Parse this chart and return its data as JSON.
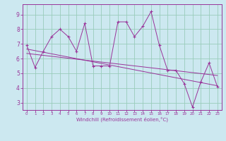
{
  "x": [
    0,
    1,
    2,
    3,
    4,
    5,
    6,
    7,
    8,
    9,
    10,
    11,
    12,
    13,
    14,
    15,
    16,
    17,
    18,
    19,
    20,
    21,
    22,
    23
  ],
  "y": [
    6.9,
    5.4,
    6.5,
    7.5,
    8.0,
    7.5,
    6.5,
    8.4,
    5.5,
    5.5,
    5.5,
    8.5,
    8.5,
    7.5,
    8.2,
    9.2,
    6.9,
    5.2,
    5.2,
    4.3,
    2.7,
    4.4,
    5.7,
    4.1
  ],
  "line_color": "#993399",
  "bg_color": "#cce8f0",
  "grid_color": "#99ccbb",
  "xlabel": "Windchill (Refroidissement éolien,°C)",
  "ylim": [
    2.5,
    9.7
  ],
  "xlim": [
    -0.5,
    23.5
  ],
  "yticks": [
    3,
    4,
    5,
    6,
    7,
    8,
    9
  ],
  "xticks": [
    0,
    1,
    2,
    3,
    4,
    5,
    6,
    7,
    8,
    9,
    10,
    11,
    12,
    13,
    14,
    15,
    16,
    17,
    18,
    19,
    20,
    21,
    22,
    23
  ],
  "trend1_start": 6.65,
  "trend1_end": 4.15,
  "trend2_start": 6.35,
  "trend2_end": 4.85
}
